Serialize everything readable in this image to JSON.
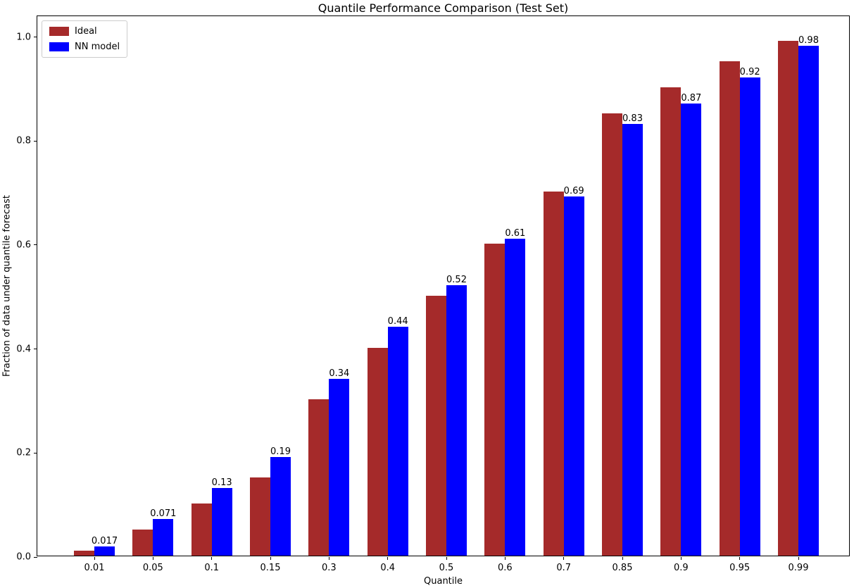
{
  "chart_data": {
    "type": "bar",
    "title": "Quantile Performance Comparison (Test Set)",
    "xlabel": "Quantile",
    "ylabel": "Fraction of data under quantile forecast",
    "categories": [
      "0.01",
      "0.05",
      "0.1",
      "0.15",
      "0.3",
      "0.4",
      "0.5",
      "0.6",
      "0.7",
      "0.85",
      "0.9",
      "0.95",
      "0.99"
    ],
    "series": [
      {
        "name": "Ideal",
        "color": "#A52A2A",
        "values": [
          0.01,
          0.05,
          0.1,
          0.15,
          0.3,
          0.4,
          0.5,
          0.6,
          0.7,
          0.85,
          0.9,
          0.95,
          0.99
        ],
        "labels": null
      },
      {
        "name": "NN model",
        "color": "#0000FF",
        "values": [
          0.017,
          0.071,
          0.13,
          0.19,
          0.34,
          0.44,
          0.52,
          0.61,
          0.69,
          0.83,
          0.87,
          0.92,
          0.98
        ],
        "labels": [
          "0.017",
          "0.071",
          "0.13",
          "0.19",
          "0.34",
          "0.44",
          "0.52",
          "0.61",
          "0.69",
          "0.83",
          "0.87",
          "0.92",
          "0.98"
        ]
      }
    ],
    "y_ticks": [
      {
        "label": "0.0",
        "value": 0.0
      },
      {
        "label": "0.2",
        "value": 0.2
      },
      {
        "label": "0.4",
        "value": 0.4
      },
      {
        "label": "0.6",
        "value": 0.6
      },
      {
        "label": "0.8",
        "value": 0.8
      },
      {
        "label": "1.0",
        "value": 1.0
      }
    ],
    "ylim": [
      0,
      1.04
    ],
    "grid": false,
    "legend_position": "upper-left",
    "axis_color": "#000000",
    "text_color": "#000000"
  }
}
